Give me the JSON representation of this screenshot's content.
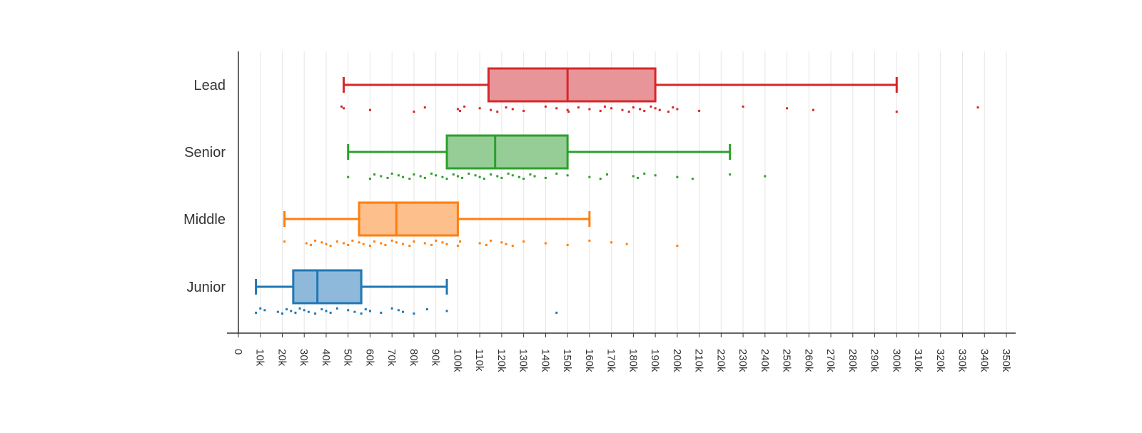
{
  "chart_data": {
    "type": "box",
    "orientation": "horizontal",
    "grid": true,
    "xlim": [
      0,
      350000
    ],
    "x_ticks": [
      {
        "value": 0,
        "label": "0"
      },
      {
        "value": 10000,
        "label": "10k"
      },
      {
        "value": 20000,
        "label": "20k"
      },
      {
        "value": 30000,
        "label": "30k"
      },
      {
        "value": 40000,
        "label": "40k"
      },
      {
        "value": 50000,
        "label": "50k"
      },
      {
        "value": 60000,
        "label": "60k"
      },
      {
        "value": 70000,
        "label": "70k"
      },
      {
        "value": 80000,
        "label": "80k"
      },
      {
        "value": 90000,
        "label": "90k"
      },
      {
        "value": 100000,
        "label": "100k"
      },
      {
        "value": 110000,
        "label": "110k"
      },
      {
        "value": 120000,
        "label": "120k"
      },
      {
        "value": 130000,
        "label": "130k"
      },
      {
        "value": 140000,
        "label": "140k"
      },
      {
        "value": 150000,
        "label": "150k"
      },
      {
        "value": 160000,
        "label": "160k"
      },
      {
        "value": 170000,
        "label": "170k"
      },
      {
        "value": 180000,
        "label": "180k"
      },
      {
        "value": 190000,
        "label": "190k"
      },
      {
        "value": 200000,
        "label": "200k"
      },
      {
        "value": 210000,
        "label": "210k"
      },
      {
        "value": 220000,
        "label": "220k"
      },
      {
        "value": 230000,
        "label": "230k"
      },
      {
        "value": 240000,
        "label": "240k"
      },
      {
        "value": 250000,
        "label": "250k"
      },
      {
        "value": 260000,
        "label": "260k"
      },
      {
        "value": 270000,
        "label": "270k"
      },
      {
        "value": 280000,
        "label": "280k"
      },
      {
        "value": 290000,
        "label": "290k"
      },
      {
        "value": 300000,
        "label": "300k"
      },
      {
        "value": 310000,
        "label": "310k"
      },
      {
        "value": 320000,
        "label": "320k"
      },
      {
        "value": 330000,
        "label": "330k"
      },
      {
        "value": 340000,
        "label": "340k"
      },
      {
        "value": 350000,
        "label": "350k"
      }
    ],
    "categories": [
      "Lead",
      "Senior",
      "Middle",
      "Junior"
    ],
    "series": [
      {
        "name": "Lead",
        "color": "#d62728",
        "fill": "#e8959a",
        "whisker_low": 48000,
        "q1": 114000,
        "median": 150000,
        "q3": 190000,
        "whisker_high": 300000,
        "points": [
          47000,
          48000,
          60000,
          80000,
          85000,
          100000,
          101000,
          103000,
          110000,
          115000,
          118000,
          122000,
          125000,
          130000,
          140000,
          145000,
          150000,
          150500,
          155000,
          160000,
          165000,
          167000,
          170000,
          175000,
          178000,
          180000,
          183000,
          185000,
          188000,
          190000,
          192000,
          196000,
          198000,
          200000,
          210000,
          230000,
          250000,
          262000,
          300000,
          337000
        ]
      },
      {
        "name": "Senior",
        "color": "#2ca02c",
        "fill": "#96cd96",
        "whisker_low": 50000,
        "q1": 95000,
        "median": 117000,
        "q3": 150000,
        "whisker_high": 224000,
        "points": [
          50000,
          60000,
          62000,
          65000,
          68000,
          70000,
          73000,
          75000,
          78000,
          80000,
          83000,
          85000,
          88000,
          90000,
          93000,
          95000,
          98000,
          100000,
          102000,
          105000,
          108000,
          110000,
          112000,
          115000,
          118000,
          120000,
          123000,
          125000,
          128000,
          130000,
          133000,
          135000,
          140000,
          145000,
          150000,
          160000,
          165000,
          168000,
          180000,
          182000,
          185000,
          190000,
          200000,
          207000,
          224000,
          240000
        ]
      },
      {
        "name": "Middle",
        "color": "#ff7f0e",
        "fill": "#fdbf8c",
        "whisker_low": 21000,
        "q1": 55000,
        "median": 72000,
        "q3": 100000,
        "whisker_high": 160000,
        "points": [
          21000,
          31000,
          33000,
          35000,
          38000,
          40000,
          42000,
          45000,
          48000,
          50000,
          52000,
          55000,
          57000,
          60000,
          62000,
          65000,
          67000,
          70000,
          72000,
          75000,
          78000,
          80000,
          85000,
          88000,
          90000,
          93000,
          95000,
          100000,
          101000,
          110000,
          113000,
          115000,
          120000,
          122000,
          125000,
          130000,
          140000,
          150000,
          160000,
          170000,
          177000,
          200000
        ]
      },
      {
        "name": "Junior",
        "color": "#1f77b4",
        "fill": "#8fb9db",
        "whisker_low": 8000,
        "q1": 25000,
        "median": 36000,
        "q3": 56000,
        "whisker_high": 95000,
        "points": [
          8000,
          10000,
          12000,
          18000,
          20000,
          22000,
          24000,
          26000,
          28000,
          30000,
          32000,
          35000,
          38000,
          40000,
          42000,
          45000,
          50000,
          53000,
          56000,
          58000,
          60000,
          65000,
          70000,
          73000,
          75000,
          80000,
          86000,
          95000,
          145000
        ]
      }
    ]
  }
}
